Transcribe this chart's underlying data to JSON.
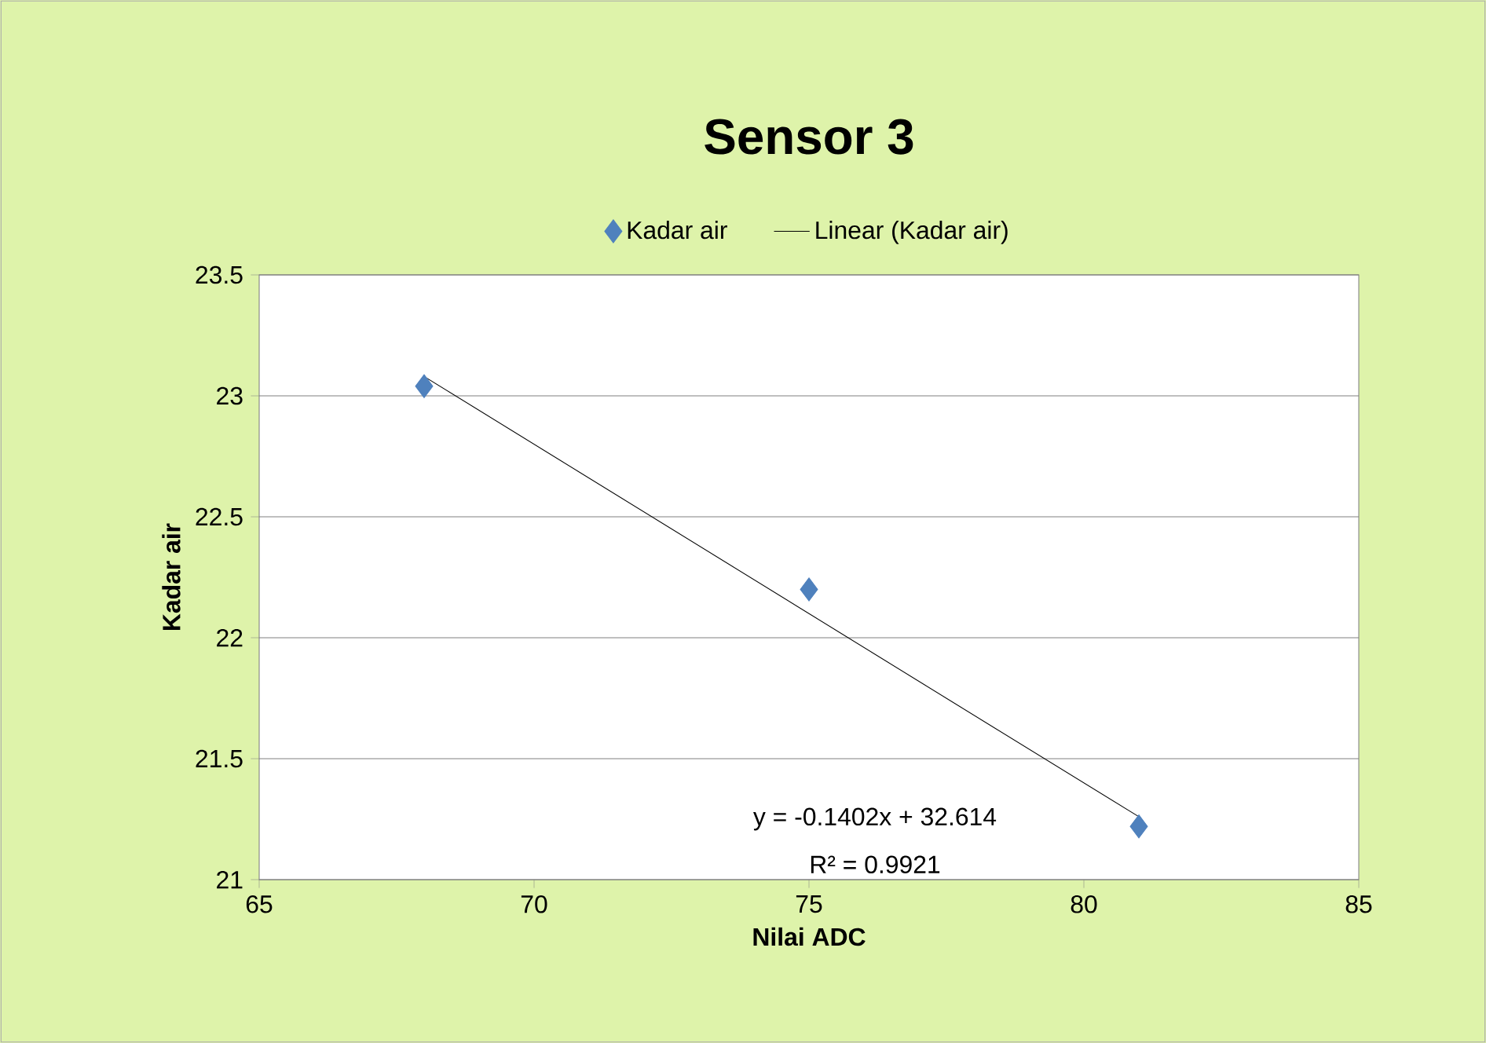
{
  "chart_data": {
    "type": "scatter",
    "title": "Sensor 3",
    "xlabel": "Nilai ADC",
    "ylabel": "Kadar air",
    "series": [
      {
        "name": "Kadar air",
        "color": "#4f81bd",
        "x": [
          68,
          75,
          81
        ],
        "values": [
          23.04,
          22.2,
          21.22
        ],
        "marker": "diamond"
      },
      {
        "name": "Linear (Kadar air)",
        "type": "line",
        "color": "#000000",
        "x": [
          68,
          81
        ],
        "values": [
          23.08,
          21.26
        ],
        "line_style": "solid"
      }
    ],
    "xlim": [
      65,
      85
    ],
    "xticks": [
      65,
      70,
      75,
      80,
      85
    ],
    "ylim": [
      21,
      23.5
    ],
    "yticks": [
      21,
      {
        "value": 21.5,
        "label": "21.5"
      },
      22,
      {
        "value": 22.5,
        "label": "22.5"
      },
      23,
      {
        "value": 23.5,
        "label": "23.5"
      }
    ],
    "grid": "y",
    "legend": "top",
    "annotations": [
      "y = -0.1402x + 32.614",
      "R² = 0.9921"
    ]
  }
}
